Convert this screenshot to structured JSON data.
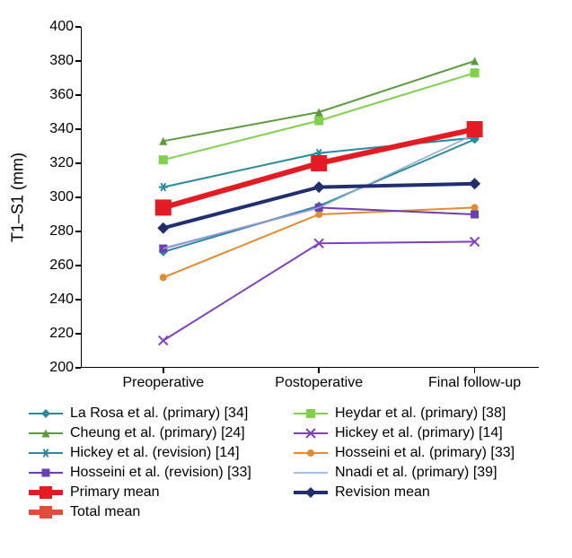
{
  "chart": {
    "type": "line",
    "ylabel": "T1–S1 (mm)",
    "ylim": [
      200,
      400
    ],
    "ytick_step": 20,
    "categories": [
      "Preoperative",
      "Postoperative",
      "Final follow-up"
    ],
    "background_color": "#ffffff",
    "axis_color": "#000000",
    "tick_fontsize": 16,
    "label_fontsize": 18,
    "series": [
      {
        "label": "La Rosa et al. (primary) [34]",
        "color": "#2b8a9e",
        "marker": "diamond",
        "width": 2,
        "marker_size": 10,
        "values": [
          268,
          295,
          334
        ]
      },
      {
        "label": "Heydar et al. (primary) [38]",
        "color": "#7fd14a",
        "marker": "square",
        "width": 2,
        "marker_size": 10,
        "values": [
          322,
          345,
          373
        ]
      },
      {
        "label": "Cheung et al. (primary) [24]",
        "color": "#5b9b3e",
        "marker": "triangle",
        "width": 2,
        "marker_size": 9,
        "values": [
          333,
          350,
          380
        ]
      },
      {
        "label": "Hickey et al. (primary) [14]",
        "color": "#7f3fbf",
        "marker": "x",
        "width": 2,
        "marker_size": 10,
        "values": [
          216,
          273,
          274
        ]
      },
      {
        "label": "Hickey et al. (revision) [14]",
        "color": "#2b8a9e",
        "marker": "asterisk",
        "width": 2,
        "marker_size": 10,
        "values": [
          306,
          326,
          335
        ]
      },
      {
        "label": "Hosseini et al. (primary) [33]",
        "color": "#e58a2e",
        "marker": "circle",
        "width": 2,
        "marker_size": 8,
        "values": [
          253,
          290,
          294
        ]
      },
      {
        "label": "Hosseini et al. (revision) [33]",
        "color": "#6a3fb3",
        "marker": "square-small",
        "width": 2,
        "marker_size": 9,
        "values": [
          270,
          294,
          290
        ]
      },
      {
        "label": "Nnadi et al. (primary) [39]",
        "color": "#8aa7d6",
        "marker": "none",
        "width": 1.5,
        "marker_size": 0,
        "values": [
          270,
          294,
          337
        ]
      },
      {
        "label": "Primary mean",
        "color": "#e31b23",
        "marker": "big-square",
        "width": 6,
        "marker_size": 18,
        "values": [
          294,
          320,
          340
        ]
      },
      {
        "label": "Revision mean",
        "color": "#1f2f6f",
        "marker": "diamond-big",
        "width": 4,
        "marker_size": 13,
        "values": [
          282,
          306,
          308
        ]
      },
      {
        "label": "Total mean",
        "color": "#e34b3b",
        "marker": "big-square",
        "width": 6,
        "marker_size": 18,
        "values": null
      }
    ]
  }
}
